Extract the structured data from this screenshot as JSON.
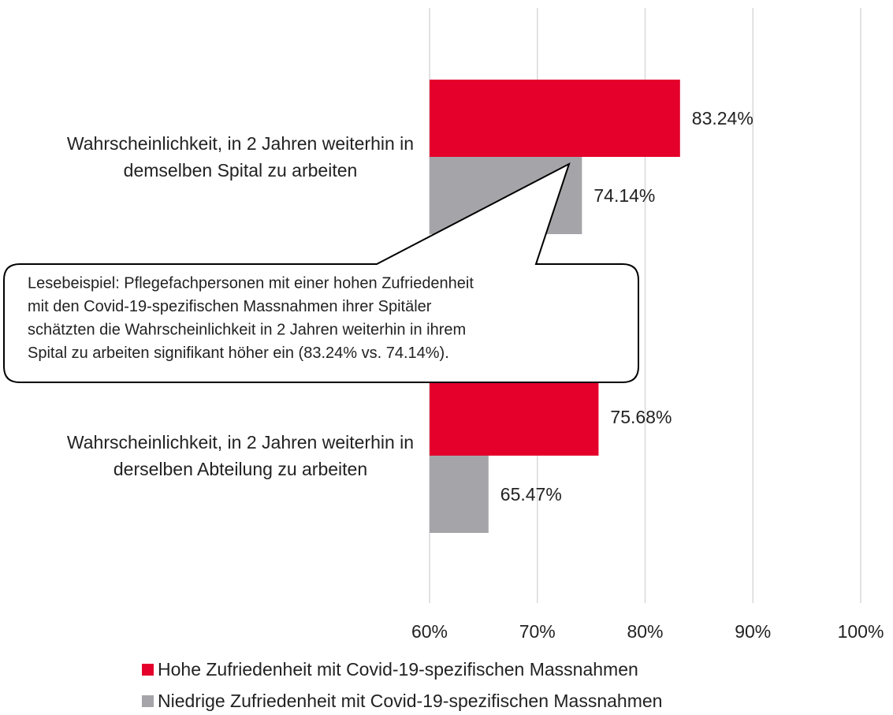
{
  "chart_data": {
    "type": "barh",
    "categories": [
      "Wahrscheinlichkeit, in 2 Jahren weiterhin in demselben Spital zu arbeiten",
      "Wahrscheinlichkeit, in 2 Jahren weiterhin in derselben Abteilung zu arbeiten"
    ],
    "series": [
      {
        "name": "Hohe Zufriedenheit mit Covid-19-spezifischen Massnahmen",
        "color": "#e4002b",
        "values": [
          83.24,
          75.68
        ],
        "value_labels": [
          "83.24%",
          "75.68%"
        ]
      },
      {
        "name": "Niedrige Zufriedenheit mit Covid-19-spezifischen Massnahmen",
        "color": "#a5a5a9",
        "values": [
          74.14,
          65.47
        ],
        "value_labels": [
          "74.14%",
          "65.47%"
        ]
      }
    ],
    "xlim": [
      60,
      100
    ],
    "xticks": [
      {
        "value": 60,
        "label": "60%"
      },
      {
        "value": 70,
        "label": "70%"
      },
      {
        "value": 80,
        "label": "80%"
      },
      {
        "value": 90,
        "label": "90%"
      },
      {
        "value": 100,
        "label": "100%"
      }
    ],
    "grid": true,
    "legend": "bottom",
    "annotation": [
      "Lesebeispiel: Pflegefachpersonen mit einer hohen Zufriedenheit",
      "mit den Covid-19-spezifischen Massnahmen ihrer Spitäler",
      "schätzten die Wahrscheinlichkeit in 2 Jahren weiterhin in ihrem",
      "Spital zu arbeiten signifikant höher ein (83.24% vs. 74.14%)."
    ]
  }
}
